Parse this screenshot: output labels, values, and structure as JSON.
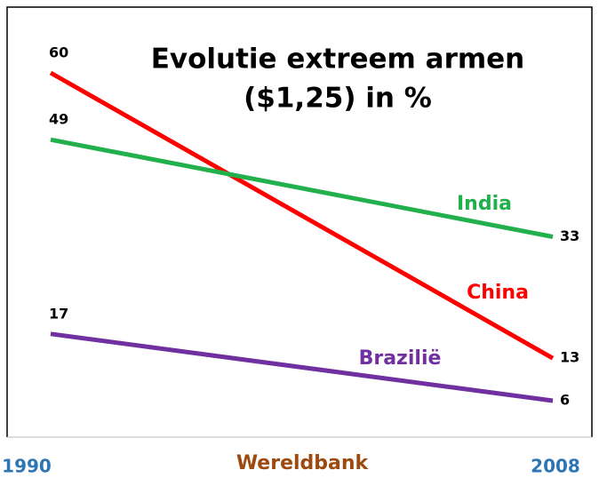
{
  "chart_data": {
    "type": "line",
    "title": "Evolutie extreem armen",
    "subtitle": "($1,25) in %",
    "source": "Wereldbank",
    "categories": [
      "1990",
      "2008"
    ],
    "series": [
      {
        "name": "China",
        "color": "#ff0000",
        "values": [
          60,
          13
        ]
      },
      {
        "name": "India",
        "color": "#21b04b",
        "values": [
          49,
          33
        ]
      },
      {
        "name": "Brazilië",
        "color": "#7030a0",
        "values": [
          17,
          6
        ]
      }
    ],
    "ylim": [
      0,
      60
    ]
  }
}
